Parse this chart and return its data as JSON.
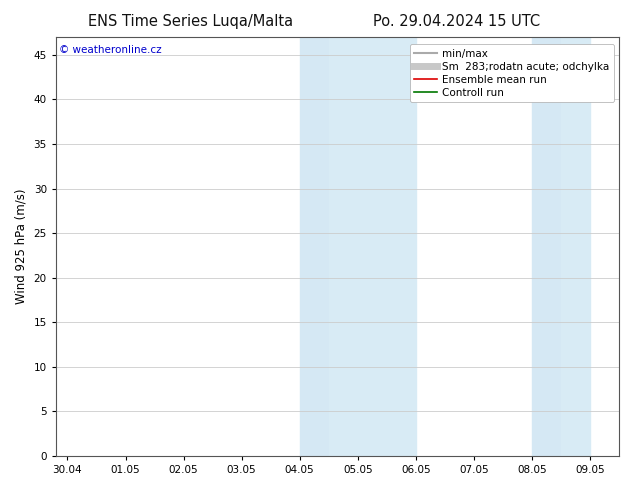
{
  "title_left": "ENS Time Series Luqa/Malta",
  "title_right": "Po. 29.04.2024 15 UTC",
  "ylabel": "Wind 925 hPa (m/s)",
  "watermark": "© weatheronline.cz",
  "watermark_color": "#0000cc",
  "background_color": "#ffffff",
  "plot_bg_color": "#ffffff",
  "shaded_regions": [
    [
      4,
      4.5
    ],
    [
      4.5,
      6
    ],
    [
      8,
      8.5
    ],
    [
      8.5,
      9
    ]
  ],
  "shaded_colors": [
    "#ddedf7",
    "#cfe4f2",
    "#ddedf7",
    "#cfe4f2"
  ],
  "ylim": [
    0,
    47
  ],
  "yticks": [
    0,
    5,
    10,
    15,
    20,
    25,
    30,
    35,
    40,
    45
  ],
  "xtick_labels": [
    "30.04",
    "01.05",
    "02.05",
    "03.05",
    "04.05",
    "05.05",
    "06.05",
    "07.05",
    "08.05",
    "09.05"
  ],
  "xtick_positions": [
    0,
    1,
    2,
    3,
    4,
    5,
    6,
    7,
    8,
    9
  ],
  "xlim": [
    -0.2,
    9.5
  ],
  "legend_entries": [
    {
      "label": "min/max",
      "color": "#aaaaaa",
      "lw": 1.5,
      "style": "solid"
    },
    {
      "label": "Sm  283;rodatn acute; odchylka",
      "color": "#c8c8c8",
      "lw": 5,
      "style": "solid"
    },
    {
      "label": "Ensemble mean run",
      "color": "#dd0000",
      "lw": 1.2,
      "style": "solid"
    },
    {
      "label": "Controll run",
      "color": "#007700",
      "lw": 1.2,
      "style": "solid"
    }
  ],
  "grid_color": "#cccccc",
  "tick_fontsize": 7.5,
  "label_fontsize": 8.5,
  "title_fontsize": 10.5,
  "legend_fontsize": 7.5
}
